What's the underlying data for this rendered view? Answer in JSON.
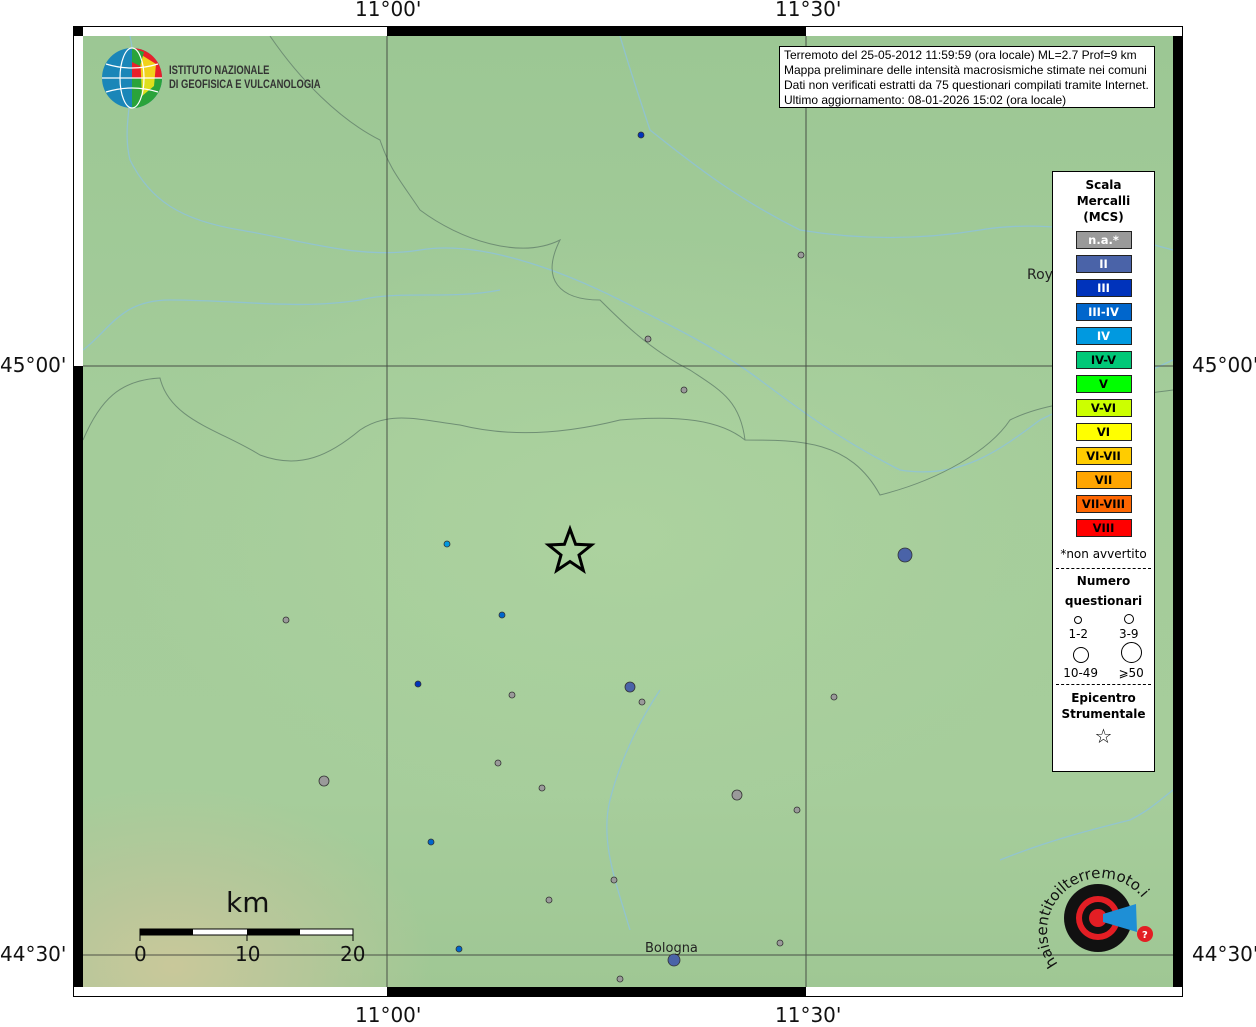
{
  "coordinates": {
    "lon_labels": [
      "11°00'",
      "11°30'"
    ],
    "lat_labels": [
      "45°00'",
      "44°30'"
    ]
  },
  "info_box": {
    "lines": [
      "Terremoto del 25-05-2012 11:59:59 (ora locale) ML=2.7 Prof=9 km",
      "Mappa preliminare delle intensità macrosismiche stimate nei comuni",
      "Dati non verificati estratti da 75 questionari compilati tramite Internet.",
      "Ultimo aggiornamento: 08-01-2026 15:02 (ora locale)"
    ]
  },
  "logo_ingv": {
    "line1": "ISTITUTO NAZIONALE",
    "line2": "DI GEOFISICA E VULCANOLOGIA"
  },
  "logo_hsit": {
    "text": "www.haisentitoilterremoto.it"
  },
  "places": {
    "bologna": "Bologna",
    "rovigo_partial": "Roy"
  },
  "scale_bar": {
    "unit": "km",
    "ticks": [
      "0",
      "10",
      "20"
    ]
  },
  "legend": {
    "title": [
      "Scala",
      "Mercalli",
      "(MCS)"
    ],
    "classes": [
      {
        "label": "n.a.*",
        "color": "#9a9a9a",
        "text_color": "#ffffff"
      },
      {
        "label": "II",
        "color": "#4a63a8",
        "text_color": "#ffffff"
      },
      {
        "label": "III",
        "color": "#0033bb",
        "text_color": "#ffffff"
      },
      {
        "label": "III-IV",
        "color": "#0066cc",
        "text_color": "#ffffff"
      },
      {
        "label": "IV",
        "color": "#0099e0",
        "text_color": "#ffffff"
      },
      {
        "label": "IV-V",
        "color": "#00c878",
        "text_color": "#000000"
      },
      {
        "label": "V",
        "color": "#00ff00",
        "text_color": "#000000"
      },
      {
        "label": "V-VI",
        "color": "#ccff00",
        "text_color": "#000000"
      },
      {
        "label": "VI",
        "color": "#ffff00",
        "text_color": "#000000"
      },
      {
        "label": "VI-VII",
        "color": "#ffcc00",
        "text_color": "#000000"
      },
      {
        "label": "VII",
        "color": "#ffa500",
        "text_color": "#000000"
      },
      {
        "label": "VII-VIII",
        "color": "#ff6600",
        "text_color": "#000000"
      },
      {
        "label": "VIII",
        "color": "#ff0000",
        "text_color": "#000000"
      }
    ],
    "footnote": "*non avvertito",
    "count_title": [
      "Numero",
      "questionari"
    ],
    "count_classes": [
      "1-2",
      "3-9",
      "10-49",
      "⩾50"
    ],
    "epicenter_title": [
      "Epicentro",
      "Strumentale"
    ]
  }
}
